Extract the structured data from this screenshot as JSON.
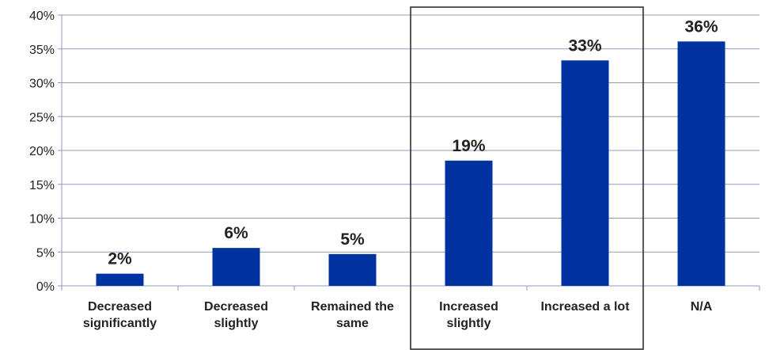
{
  "chart_data": {
    "type": "bar",
    "title": "",
    "xlabel": "",
    "ylabel": "",
    "ylim": [
      0,
      40
    ],
    "y_tick_step": 5,
    "y_tick_suffix": "%",
    "grid": true,
    "highlight_box": {
      "from_category": 3,
      "to_category": 4
    },
    "categories": [
      [
        "Decreased",
        "significantly"
      ],
      [
        "Decreased",
        "slightly"
      ],
      [
        "Remained the",
        "same"
      ],
      [
        "Increased",
        "slightly"
      ],
      [
        "Increased a lot"
      ],
      [
        "N/A"
      ]
    ],
    "values": [
      2,
      6,
      5,
      19,
      33,
      36
    ],
    "bar_values": [
      1.8,
      5.6,
      4.7,
      18.5,
      33.3,
      36.1
    ],
    "data_labels": [
      "2%",
      "6%",
      "5%",
      "19%",
      "33%",
      "36%"
    ],
    "colors": {
      "bar": "#0033A0",
      "grid": "#8A9CBF",
      "axis": "#8A9CBF",
      "box": "#222222"
    }
  }
}
